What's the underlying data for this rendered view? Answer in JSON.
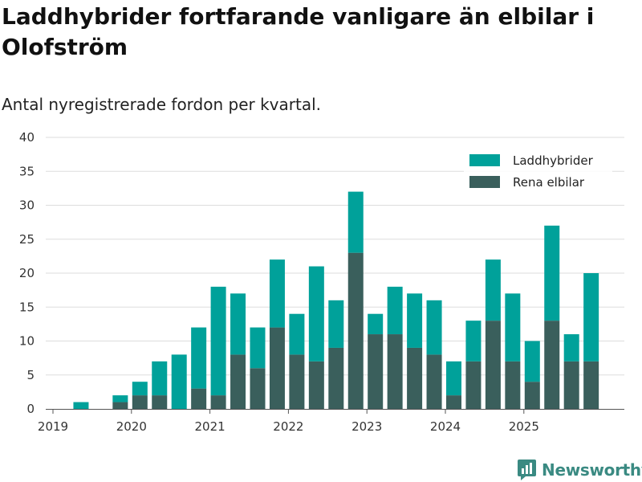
{
  "chart_data": {
    "type": "bar",
    "stacked": true,
    "title": "Laddhybrider fortfarande vanligare än elbilar i Olofström",
    "subtitle": "Antal nyregistrerade fordon per kvartal.",
    "xlabel": "",
    "ylabel": "",
    "ylim": [
      0,
      40
    ],
    "y_ticks": [
      "0",
      "5",
      "10",
      "15",
      "20",
      "25",
      "30",
      "35",
      "40"
    ],
    "x_ticks": [
      "2019",
      "2020",
      "2021",
      "2022",
      "2023",
      "2024",
      "2025"
    ],
    "categories": [
      "2019Q1",
      "2019Q2",
      "2019Q3",
      "2019Q4",
      "2020Q1",
      "2020Q2",
      "2020Q3",
      "2020Q4",
      "2021Q1",
      "2021Q2",
      "2021Q3",
      "2021Q4",
      "2022Q1",
      "2022Q2",
      "2022Q3",
      "2022Q4",
      "2023Q1",
      "2023Q2",
      "2023Q3",
      "2023Q4",
      "2024Q1",
      "2024Q2",
      "2024Q3",
      "2024Q4",
      "2025Q1",
      "2025Q2",
      "2025Q3",
      "2025Q4"
    ],
    "series": [
      {
        "name": "Rena elbilar",
        "color": "#3a5f5c",
        "values": [
          0,
          0,
          0,
          1,
          2,
          2,
          0,
          3,
          2,
          8,
          6,
          12,
          8,
          7,
          9,
          23,
          11,
          11,
          9,
          8,
          2,
          7,
          13,
          7,
          4,
          13,
          7,
          7
        ]
      },
      {
        "name": "Laddhybrider",
        "color": "#00a19a",
        "values": [
          0,
          1,
          0,
          1,
          2,
          5,
          8,
          9,
          16,
          9,
          6,
          10,
          6,
          14,
          7,
          9,
          3,
          7,
          8,
          8,
          5,
          6,
          9,
          10,
          6,
          14,
          4,
          13
        ]
      }
    ],
    "totals": [
      0,
      1,
      0,
      2,
      4,
      7,
      8,
      12,
      18,
      17,
      12,
      22,
      14,
      21,
      16,
      32,
      14,
      18,
      17,
      16,
      7,
      13,
      22,
      17,
      10,
      27,
      11,
      20
    ],
    "legend": [
      "Laddhybrider",
      "Rena elbilar"
    ],
    "legend_position": "top-right",
    "grid": true
  },
  "brand": {
    "name": "Newsworthy",
    "color": "#3a8a82"
  }
}
